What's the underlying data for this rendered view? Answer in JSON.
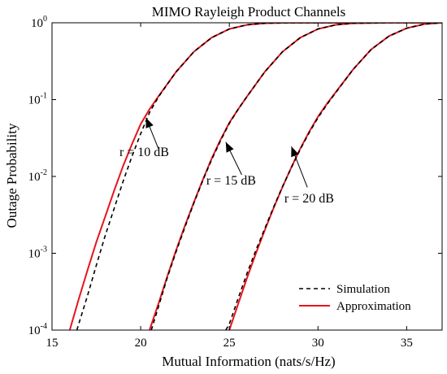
{
  "chart_data": {
    "type": "line",
    "title": "MIMO Rayleigh Product Channels",
    "xlabel": "Mutual Information (nats/s/Hz)",
    "ylabel": "Outage Probability",
    "xlim": [
      15,
      37
    ],
    "ylim": [
      0.0001,
      1
    ],
    "yscale": "log",
    "x_ticks": [
      15,
      20,
      25,
      30,
      35
    ],
    "y_ticks": [
      {
        "base": "10",
        "exp": "-4",
        "value": 0.0001
      },
      {
        "base": "10",
        "exp": "-3",
        "value": 0.001
      },
      {
        "base": "10",
        "exp": "-2",
        "value": 0.01
      },
      {
        "base": "10",
        "exp": "-1",
        "value": 0.1
      },
      {
        "base": "10",
        "exp": "0",
        "value": 1
      }
    ],
    "grid": false,
    "legend": {
      "position": "bottom-right",
      "entries": [
        {
          "label": "Simulation",
          "style": "dashed",
          "color": "#000000"
        },
        {
          "label": "Approximation",
          "style": "solid",
          "color": "#e8141c"
        }
      ]
    },
    "annotations": [
      {
        "text": "r = 10 dB",
        "text_x": 20.2,
        "text_y": 0.0185,
        "arrow_to": [
          20.3,
          0.058
        ],
        "arrow_from": [
          21.0,
          0.023
        ]
      },
      {
        "text": "r = 15 dB",
        "text_x": 25.1,
        "text_y": 0.0078,
        "arrow_to": [
          24.8,
          0.028
        ],
        "arrow_from": [
          25.7,
          0.0105
        ]
      },
      {
        "text": "r = 20 dB",
        "text_x": 29.5,
        "text_y": 0.0046,
        "arrow_to": [
          28.5,
          0.0245
        ],
        "arrow_from": [
          29.4,
          0.0072
        ]
      }
    ],
    "series": [
      {
        "name": "Approximation",
        "group": "r = 10 dB",
        "style": "solid",
        "color": "#e8141c",
        "x": [
          16.0,
          16.5,
          17.0,
          17.5,
          18.0,
          18.5,
          19.0,
          19.5,
          20.0,
          20.5,
          21.0,
          22.0,
          23.0,
          24.0,
          25.0,
          26.0,
          27.0,
          28.0,
          30.0,
          37.0
        ],
        "y": [
          0.0001,
          0.00025,
          0.0006,
          0.0014,
          0.003,
          0.0065,
          0.0135,
          0.026,
          0.048,
          0.075,
          0.11,
          0.23,
          0.42,
          0.64,
          0.83,
          0.94,
          0.985,
          0.997,
          1.0,
          1.0
        ]
      },
      {
        "name": "Simulation",
        "group": "r = 10 dB",
        "style": "dashed",
        "color": "#000000",
        "x": [
          16.4,
          17.0,
          17.5,
          18.0,
          18.5,
          19.0,
          19.5,
          20.0,
          20.5,
          21.0,
          22.0,
          23.0,
          24.0,
          25.0,
          26.0,
          27.0,
          28.0,
          30.0,
          37.0
        ],
        "y": [
          0.0001,
          0.00028,
          0.0007,
          0.0017,
          0.0038,
          0.0085,
          0.018,
          0.036,
          0.068,
          0.108,
          0.23,
          0.42,
          0.64,
          0.83,
          0.94,
          0.985,
          0.997,
          1.0,
          1.0
        ]
      },
      {
        "name": "Approximation",
        "group": "r = 15 dB",
        "style": "solid",
        "color": "#e8141c",
        "x": [
          20.5,
          21.0,
          21.5,
          22.0,
          22.5,
          23.0,
          23.5,
          24.0,
          24.5,
          25.0,
          25.5,
          26.0,
          27.0,
          28.0,
          29.0,
          30.0,
          31.0,
          32.0,
          34.0,
          37.0
        ],
        "y": [
          0.0001,
          0.00022,
          0.0005,
          0.0011,
          0.0023,
          0.0046,
          0.009,
          0.017,
          0.03,
          0.05,
          0.075,
          0.11,
          0.23,
          0.42,
          0.64,
          0.83,
          0.94,
          0.985,
          1.0,
          1.0
        ]
      },
      {
        "name": "Simulation",
        "group": "r = 15 dB",
        "style": "dashed",
        "color": "#000000",
        "x": [
          20.6,
          21.0,
          21.5,
          22.0,
          22.5,
          23.0,
          23.5,
          24.0,
          24.5,
          25.0,
          25.5,
          26.0,
          27.0,
          28.0,
          29.0,
          30.0,
          31.0,
          32.0,
          34.0,
          37.0
        ],
        "y": [
          0.0001,
          0.0002,
          0.00048,
          0.00105,
          0.0022,
          0.0045,
          0.0088,
          0.0165,
          0.029,
          0.049,
          0.075,
          0.11,
          0.23,
          0.42,
          0.64,
          0.83,
          0.94,
          0.985,
          1.0,
          1.0
        ]
      },
      {
        "name": "Approximation",
        "group": "r = 20 dB",
        "style": "solid",
        "color": "#e8141c",
        "x": [
          25.0,
          25.5,
          26.0,
          26.5,
          27.0,
          27.5,
          28.0,
          28.5,
          29.0,
          29.5,
          30.0,
          30.5,
          31.0,
          32.0,
          33.0,
          34.0,
          35.0,
          36.0,
          37.0
        ],
        "y": [
          0.0001,
          0.00022,
          0.00048,
          0.001,
          0.002,
          0.0039,
          0.0073,
          0.0132,
          0.023,
          0.038,
          0.06,
          0.088,
          0.125,
          0.25,
          0.45,
          0.67,
          0.85,
          0.96,
          1.0
        ]
      },
      {
        "name": "Simulation",
        "group": "r = 20 dB",
        "style": "dashed",
        "color": "#000000",
        "x": [
          24.8,
          25.0,
          25.5,
          26.0,
          26.5,
          27.0,
          27.5,
          28.0,
          28.5,
          29.0,
          29.5,
          30.0,
          30.5,
          31.0,
          32.0,
          33.0,
          34.0,
          35.0,
          36.0,
          37.0
        ],
        "y": [
          0.0001,
          0.00012,
          0.00026,
          0.00055,
          0.0011,
          0.0021,
          0.004,
          0.0074,
          0.013,
          0.0225,
          0.037,
          0.058,
          0.086,
          0.123,
          0.25,
          0.45,
          0.67,
          0.85,
          0.96,
          1.0
        ]
      }
    ]
  }
}
